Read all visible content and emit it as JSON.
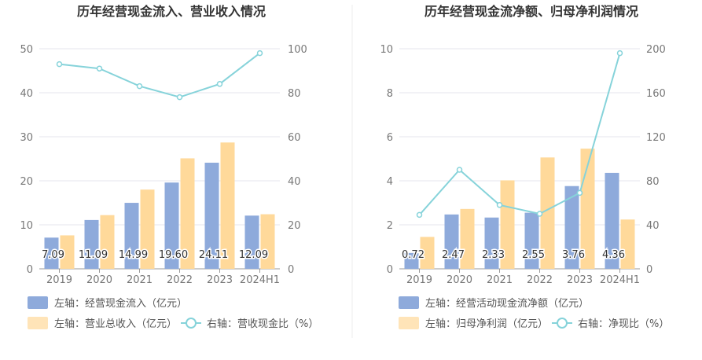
{
  "chart_data": [
    {
      "type": "bar",
      "title": "历年经营现金流入、营业收入情况",
      "categories": [
        "2019",
        "2020",
        "2021",
        "2022",
        "2023",
        "2024H1"
      ],
      "left_axis": {
        "ticks": [
          "0",
          "10",
          "20",
          "30",
          "40",
          "50"
        ],
        "ylim": [
          0,
          50
        ]
      },
      "right_axis": {
        "ticks": [
          "0",
          "20",
          "40",
          "60",
          "80",
          "100"
        ],
        "ylim": [
          0,
          100
        ]
      },
      "grid": true,
      "legend_position": "bottom",
      "series": [
        {
          "name": "左轴：经营现金流入（亿元）",
          "type": "bar",
          "axis": "left",
          "color": "#8eaadb",
          "values": [
            7.09,
            11.09,
            14.99,
            19.6,
            24.11,
            12.09
          ],
          "data_labels": [
            "7.09",
            "11.09",
            "14.99",
            "19.60",
            "24.11",
            "12.09"
          ]
        },
        {
          "name": "左轴：营业总收入（亿元）",
          "type": "bar",
          "axis": "left",
          "color": "#ffd99a",
          "values": [
            7.6,
            12.2,
            18.0,
            25.1,
            28.7,
            12.4
          ]
        },
        {
          "name": "右轴：营收现金比（%）",
          "type": "line",
          "axis": "right",
          "color": "#86d3da",
          "values": [
            93,
            91,
            83,
            78,
            84,
            98
          ]
        }
      ]
    },
    {
      "type": "bar",
      "title": "历年经营现金流净额、归母净利润情况",
      "categories": [
        "2019",
        "2020",
        "2021",
        "2022",
        "2023",
        "2024H1"
      ],
      "left_axis": {
        "ticks": [
          "0",
          "2",
          "4",
          "6",
          "8",
          "10"
        ],
        "ylim": [
          0,
          10
        ]
      },
      "right_axis": {
        "ticks": [
          "0",
          "40",
          "80",
          "120",
          "160",
          "200"
        ],
        "ylim": [
          0,
          200
        ]
      },
      "grid": true,
      "legend_position": "bottom",
      "series": [
        {
          "name": "左轴：经营活动现金流净额（亿元）",
          "type": "bar",
          "axis": "left",
          "color": "#8eaadb",
          "values": [
            0.72,
            2.47,
            2.33,
            2.55,
            3.76,
            4.36
          ],
          "data_labels": [
            "0.72",
            "2.47",
            "2.33",
            "2.55",
            "3.76",
            "4.36"
          ]
        },
        {
          "name": "左轴：归母净利润（亿元）",
          "type": "bar",
          "axis": "left",
          "color": "#ffd99a",
          "values": [
            1.45,
            2.72,
            4.02,
            5.06,
            5.46,
            2.24
          ]
        },
        {
          "name": "右轴：净现比（%）",
          "type": "line",
          "axis": "right",
          "color": "#86d3da",
          "values": [
            49,
            90,
            58,
            50,
            69,
            196
          ]
        }
      ]
    }
  ]
}
